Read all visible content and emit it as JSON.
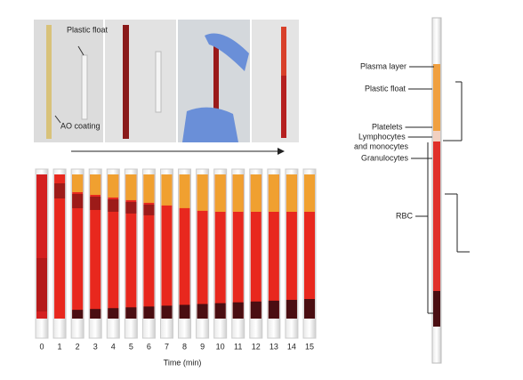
{
  "panel_a": {
    "float_label": "Plastic float",
    "coating_label": "AO coating"
  },
  "panel_b": {
    "time_labels": [
      0,
      1,
      2,
      3,
      4,
      5,
      6,
      7,
      8,
      9,
      10,
      11,
      12,
      13,
      14,
      15
    ],
    "axis_label": "Time (min)"
  },
  "panel_c": {
    "labels": [
      "Plasma layer",
      "Plastic float",
      "Platelets",
      "Lymphocytes",
      "and monocytes",
      "Granulocytes",
      "RBC"
    ]
  }
}
